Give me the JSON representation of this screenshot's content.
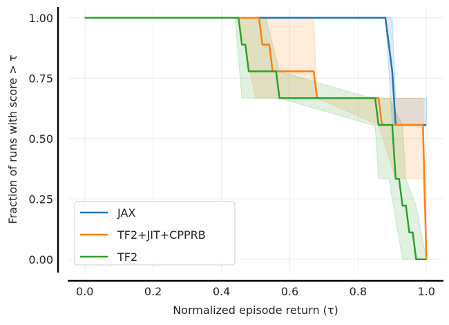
{
  "chart_data": {
    "type": "line",
    "xlabel": "Normalized episode return (τ)",
    "ylabel": "Fraction of runs with score > τ",
    "xlim": [
      -0.05,
      1.05
    ],
    "ylim": [
      -0.055,
      1.045
    ],
    "x_ticks": [
      "0.0",
      "0.2",
      "0.4",
      "0.6",
      "0.8",
      "1.0"
    ],
    "y_ticks": [
      "0.00",
      "0.25",
      "0.50",
      "0.75",
      "1.00"
    ],
    "grid": true,
    "legend_position": "lower-left",
    "series": [
      {
        "name": "JAX",
        "color": "#1f77b4",
        "x": [
          0.0,
          0.88,
          0.89,
          0.9,
          0.91,
          0.92,
          1.0
        ],
        "y": [
          1.0,
          1.0,
          0.889,
          0.778,
          0.556,
          0.556,
          0.556
        ],
        "band_x": [
          0.0,
          0.88,
          0.89,
          0.9,
          0.91,
          1.0
        ],
        "band_lower": [
          1.0,
          1.0,
          0.778,
          0.556,
          0.556,
          0.556
        ],
        "band_upper": [
          1.0,
          1.0,
          1.0,
          1.0,
          0.667,
          0.667
        ]
      },
      {
        "name": "TF2+JIT+CPPRB",
        "color": "#ff7f0e",
        "x": [
          0.0,
          0.51,
          0.52,
          0.54,
          0.55,
          0.56,
          0.57,
          0.67,
          0.68,
          0.86,
          0.87,
          0.99,
          1.0
        ],
        "y": [
          1.0,
          1.0,
          0.889,
          0.889,
          0.778,
          0.778,
          0.778,
          0.778,
          0.667,
          0.667,
          0.556,
          0.556,
          0.0
        ],
        "band_x": [
          0.0,
          0.45,
          0.5,
          0.52,
          0.56,
          0.67,
          0.68,
          0.86,
          0.91,
          0.99,
          1.0
        ],
        "band_lower": [
          1.0,
          1.0,
          0.667,
          0.667,
          0.667,
          0.667,
          0.667,
          0.556,
          0.333,
          0.333,
          0.0
        ],
        "band_upper": [
          1.0,
          1.0,
          1.0,
          1.0,
          1.0,
          1.0,
          0.667,
          0.667,
          0.667,
          0.667,
          0.0
        ]
      },
      {
        "name": "TF2",
        "color": "#2ca02c",
        "x": [
          0.0,
          0.45,
          0.46,
          0.47,
          0.48,
          0.56,
          0.57,
          0.85,
          0.86,
          0.9,
          0.91,
          0.92,
          0.93,
          0.94,
          0.95,
          0.96,
          0.97,
          1.0
        ],
        "y": [
          1.0,
          1.0,
          0.889,
          0.889,
          0.778,
          0.778,
          0.667,
          0.667,
          0.556,
          0.556,
          0.333,
          0.333,
          0.222,
          0.222,
          0.111,
          0.111,
          0.0,
          0.0
        ],
        "band_x": [
          0.0,
          0.44,
          0.46,
          0.47,
          0.48,
          0.53,
          0.57,
          0.84,
          0.85,
          0.86,
          0.89,
          0.93,
          0.94,
          0.97,
          1.0
        ],
        "band_lower": [
          1.0,
          1.0,
          0.667,
          0.667,
          0.667,
          0.667,
          0.667,
          0.556,
          0.556,
          0.333,
          0.333,
          0.0,
          0.0,
          0.0,
          0.0
        ],
        "band_upper": [
          1.0,
          1.0,
          1.0,
          1.0,
          1.0,
          1.0,
          0.778,
          0.667,
          0.667,
          0.667,
          0.667,
          0.556,
          0.333,
          0.222,
          0.0
        ]
      }
    ]
  }
}
